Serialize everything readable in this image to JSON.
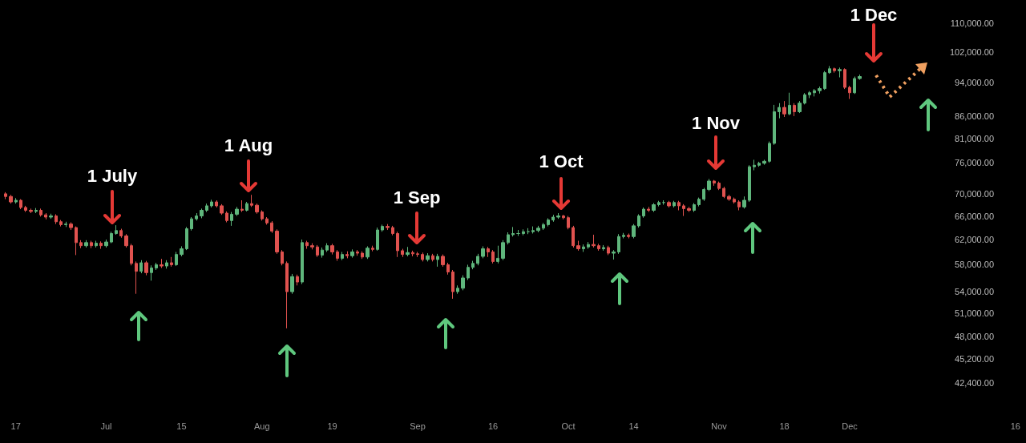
{
  "chart_data": {
    "type": "candlestick",
    "log": true,
    "categories": [
      null,
      null,
      "17",
      null,
      null,
      null,
      null,
      null,
      null,
      null,
      null,
      null,
      null,
      null,
      null,
      null,
      null,
      null,
      null,
      null,
      "Jul",
      null,
      null,
      null,
      null,
      null,
      null,
      null,
      null,
      null,
      null,
      null,
      null,
      null,
      null,
      "15",
      null,
      null,
      null,
      null,
      null,
      null,
      null,
      null,
      null,
      null,
      null,
      null,
      null,
      null,
      null,
      "Aug",
      null,
      null,
      null,
      null,
      null,
      null,
      null,
      null,
      null,
      null,
      null,
      null,
      null,
      "19",
      null,
      null,
      null,
      null,
      null,
      null,
      null,
      null,
      null,
      null,
      null,
      null,
      null,
      null,
      null,
      null,
      "Sep",
      null,
      null,
      null,
      null,
      null,
      null,
      null,
      null,
      null,
      null,
      null,
      null,
      null,
      null,
      "16",
      null,
      null,
      null,
      null,
      null,
      null,
      null,
      null,
      null,
      null,
      null,
      null,
      null,
      null,
      "Oct",
      null,
      null,
      null,
      null,
      null,
      null,
      null,
      null,
      null,
      null,
      null,
      null,
      "14",
      null,
      null,
      null,
      null,
      null,
      null,
      null,
      null,
      null,
      null,
      null,
      null,
      null,
      null,
      null,
      null,
      "Nov",
      null,
      null,
      null,
      null,
      null,
      null,
      null,
      null,
      null,
      null,
      null,
      null,
      "18",
      null,
      null,
      null,
      null,
      null,
      null,
      null,
      null,
      null,
      null,
      null,
      null,
      "Dec",
      null,
      null,
      null,
      null,
      null,
      null,
      null,
      null,
      null,
      null,
      null,
      null,
      null,
      null,
      null,
      null,
      null,
      null,
      null,
      null,
      null,
      null,
      null,
      null,
      null,
      null,
      null,
      null,
      null,
      null,
      null,
      null,
      "16"
    ],
    "ohlc": [
      [
        70000,
        70300,
        69000,
        69500
      ],
      [
        69500,
        69800,
        68200,
        68500
      ],
      [
        68500,
        69200,
        68200,
        68800
      ],
      [
        68800,
        69000,
        67200,
        67500
      ],
      [
        67500,
        67800,
        66700,
        67000
      ],
      [
        67000,
        67300,
        66500,
        66800
      ],
      [
        66800,
        67400,
        66500,
        67000
      ],
      [
        67000,
        67300,
        65900,
        66200
      ],
      [
        66200,
        66500,
        65400,
        65800
      ],
      [
        65800,
        66400,
        65500,
        66000
      ],
      [
        66000,
        66300,
        64600,
        65000
      ],
      [
        65000,
        65300,
        64200,
        64500
      ],
      [
        64500,
        65000,
        64100,
        64600
      ],
      [
        64600,
        64900,
        63600,
        64000
      ],
      [
        64000,
        64200,
        59500,
        61500
      ],
      [
        61500,
        61900,
        60600,
        61000
      ],
      [
        61000,
        61900,
        60700,
        61500
      ],
      [
        61500,
        61800,
        60600,
        61000
      ],
      [
        61000,
        61800,
        60700,
        61400
      ],
      [
        61400,
        61700,
        60500,
        61000
      ],
      [
        61000,
        62000,
        60700,
        61600
      ],
      [
        61600,
        63300,
        61400,
        63000
      ],
      [
        63000,
        64400,
        62800,
        63500
      ],
      [
        63500,
        63800,
        62300,
        62600
      ],
      [
        62600,
        62900,
        60700,
        61000
      ],
      [
        61000,
        61300,
        57900,
        58200
      ],
      [
        58200,
        58500,
        53700,
        57000
      ],
      [
        57000,
        58700,
        56700,
        58300
      ],
      [
        58300,
        58600,
        56400,
        56800
      ],
      [
        56800,
        57900,
        55600,
        57500
      ],
      [
        57500,
        58300,
        57200,
        58000
      ],
      [
        58000,
        58900,
        57500,
        57800
      ],
      [
        57800,
        58700,
        57400,
        58300
      ],
      [
        58300,
        59200,
        57700,
        58000
      ],
      [
        58000,
        60000,
        57800,
        59600
      ],
      [
        59600,
        60900,
        59300,
        60500
      ],
      [
        60500,
        64100,
        60300,
        63800
      ],
      [
        63800,
        65800,
        63500,
        65500
      ],
      [
        65500,
        66500,
        65200,
        66000
      ],
      [
        66000,
        67300,
        65600,
        67000
      ],
      [
        67000,
        68200,
        66700,
        67800
      ],
      [
        67800,
        68900,
        67500,
        68500
      ],
      [
        68500,
        68800,
        67500,
        67800
      ],
      [
        67800,
        68100,
        66200,
        66500
      ],
      [
        66500,
        66800,
        64900,
        65200
      ],
      [
        65200,
        66700,
        64300,
        66300
      ],
      [
        66300,
        67600,
        66000,
        67200
      ],
      [
        67200,
        68800,
        66700,
        67000
      ],
      [
        67000,
        68500,
        66800,
        68200
      ],
      [
        68200,
        69800,
        67600,
        67900
      ],
      [
        67900,
        68200,
        66400,
        66700
      ],
      [
        66700,
        67000,
        65200,
        65500
      ],
      [
        65500,
        65800,
        64500,
        64800
      ],
      [
        64800,
        65100,
        63100,
        63400
      ],
      [
        63400,
        63700,
        59700,
        60000
      ],
      [
        60000,
        60300,
        57900,
        58200
      ],
      [
        58200,
        58500,
        49000,
        54000
      ],
      [
        54000,
        56600,
        53700,
        56200
      ],
      [
        56200,
        56500,
        54900,
        55400
      ],
      [
        55400,
        62000,
        55100,
        61500
      ],
      [
        61500,
        61800,
        60500,
        61000
      ],
      [
        61000,
        61400,
        60400,
        60800
      ],
      [
        60800,
        61100,
        59200,
        59500
      ],
      [
        59500,
        60700,
        59100,
        60300
      ],
      [
        60300,
        61400,
        60000,
        61000
      ],
      [
        61000,
        61300,
        59600,
        60000
      ],
      [
        60000,
        60300,
        58600,
        59000
      ],
      [
        59000,
        60000,
        58700,
        59600
      ],
      [
        59600,
        60100,
        59000,
        59400
      ],
      [
        59400,
        60400,
        59100,
        60000
      ],
      [
        60000,
        60300,
        59400,
        59800
      ],
      [
        59800,
        60100,
        58900,
        59200
      ],
      [
        59200,
        60900,
        58900,
        60600
      ],
      [
        60600,
        61000,
        60100,
        60400
      ],
      [
        60400,
        64000,
        60200,
        63600
      ],
      [
        63600,
        64500,
        63300,
        64200
      ],
      [
        64200,
        64600,
        63600,
        64000
      ],
      [
        64000,
        64300,
        62700,
        63000
      ],
      [
        63000,
        63300,
        59200,
        60200
      ],
      [
        60200,
        60500,
        59200,
        59600
      ],
      [
        59600,
        60800,
        59300,
        59900
      ],
      [
        59900,
        60200,
        59300,
        59700
      ],
      [
        59700,
        60000,
        59200,
        59600
      ],
      [
        59600,
        59900,
        58500,
        58800
      ],
      [
        58800,
        59800,
        58500,
        59400
      ],
      [
        59400,
        59700,
        58500,
        58800
      ],
      [
        58800,
        59700,
        57700,
        59300
      ],
      [
        59300,
        59600,
        57700,
        58000
      ],
      [
        58000,
        58300,
        56500,
        56900
      ],
      [
        56900,
        57200,
        53000,
        54000
      ],
      [
        54000,
        54900,
        53700,
        54500
      ],
      [
        54500,
        56400,
        54200,
        56000
      ],
      [
        56000,
        58000,
        55700,
        57600
      ],
      [
        57600,
        58600,
        57300,
        58200
      ],
      [
        58200,
        59700,
        57900,
        59300
      ],
      [
        59300,
        60900,
        59000,
        60500
      ],
      [
        60500,
        60800,
        59200,
        60000
      ],
      [
        60000,
        60300,
        58200,
        58500
      ],
      [
        58500,
        61000,
        58200,
        59000
      ],
      [
        59000,
        61900,
        58700,
        61500
      ],
      [
        61500,
        63200,
        61200,
        62800
      ],
      [
        62800,
        64100,
        62500,
        63000
      ],
      [
        63000,
        63600,
        62600,
        63000
      ],
      [
        63000,
        63700,
        62700,
        63300
      ],
      [
        63300,
        63900,
        62900,
        63300
      ],
      [
        63300,
        64200,
        63000,
        63500
      ],
      [
        63500,
        64300,
        63200,
        63900
      ],
      [
        63900,
        64800,
        63600,
        64500
      ],
      [
        64500,
        65600,
        64200,
        65300
      ],
      [
        65300,
        66200,
        65000,
        65800
      ],
      [
        65800,
        66500,
        65500,
        66000
      ],
      [
        66000,
        66200,
        65400,
        65700
      ],
      [
        65700,
        66000,
        63700,
        64000
      ],
      [
        64000,
        64300,
        60700,
        61000
      ],
      [
        61000,
        61800,
        60200,
        60500
      ],
      [
        60500,
        61200,
        60000,
        60800
      ],
      [
        60800,
        61600,
        60500,
        61200
      ],
      [
        61200,
        62800,
        60700,
        61000
      ],
      [
        61000,
        61300,
        60200,
        60500
      ],
      [
        60500,
        61100,
        60200,
        60700
      ],
      [
        60700,
        61000,
        59500,
        59800
      ],
      [
        59800,
        60300,
        58800,
        60000
      ],
      [
        60000,
        62900,
        59700,
        62500
      ],
      [
        62500,
        63100,
        62200,
        62700
      ],
      [
        62700,
        63000,
        62200,
        62500
      ],
      [
        62500,
        64600,
        62200,
        64300
      ],
      [
        64300,
        66300,
        64000,
        66000
      ],
      [
        66000,
        67500,
        65700,
        67200
      ],
      [
        67200,
        67600,
        66700,
        67000
      ],
      [
        67000,
        68300,
        66700,
        68000
      ],
      [
        68000,
        68700,
        67700,
        68400
      ],
      [
        68400,
        68800,
        68000,
        68400
      ],
      [
        68400,
        68700,
        67500,
        67800
      ],
      [
        67800,
        68700,
        67500,
        68400
      ],
      [
        68400,
        68700,
        67000,
        67800
      ],
      [
        67800,
        68100,
        66000,
        67300
      ],
      [
        67300,
        67600,
        66700,
        67000
      ],
      [
        67000,
        68300,
        66700,
        68000
      ],
      [
        68000,
        69300,
        67700,
        69000
      ],
      [
        69000,
        71100,
        68700,
        70800
      ],
      [
        70800,
        72800,
        70500,
        72400
      ],
      [
        72400,
        72600,
        71500,
        72000
      ],
      [
        72000,
        72300,
        70700,
        71000
      ],
      [
        71000,
        71300,
        69200,
        69500
      ],
      [
        69500,
        69800,
        68700,
        69000
      ],
      [
        69000,
        69300,
        68200,
        68500
      ],
      [
        68500,
        68800,
        67000,
        67600
      ],
      [
        67600,
        69500,
        67300,
        68800
      ],
      [
        68800,
        75500,
        68500,
        75200
      ],
      [
        75200,
        76600,
        74500,
        75500
      ],
      [
        75500,
        76200,
        75200,
        75900
      ],
      [
        75900,
        76600,
        75600,
        76300
      ],
      [
        76300,
        80400,
        76000,
        80000
      ],
      [
        80000,
        88600,
        79700,
        87000
      ],
      [
        87000,
        89000,
        85500,
        88000
      ],
      [
        88000,
        89500,
        85800,
        86500
      ],
      [
        86500,
        91500,
        86200,
        88500
      ],
      [
        88500,
        89000,
        86000,
        87000
      ],
      [
        87000,
        89500,
        86700,
        89000
      ],
      [
        89000,
        91400,
        88700,
        91000
      ],
      [
        91000,
        91900,
        90200,
        91500
      ],
      [
        91500,
        92400,
        90600,
        92000
      ],
      [
        92000,
        93000,
        91300,
        92500
      ],
      [
        92500,
        96900,
        92200,
        96500
      ],
      [
        96500,
        98200,
        96200,
        97500
      ],
      [
        97500,
        97800,
        96500,
        97000
      ],
      [
        97000,
        97800,
        95300,
        97300
      ],
      [
        97300,
        97600,
        92400,
        92800
      ],
      [
        92800,
        93200,
        90000,
        91500
      ],
      [
        91500,
        95500,
        91200,
        95000
      ],
      [
        95000,
        96000,
        94700,
        95500
      ],
      null,
      null,
      null,
      null,
      null,
      null,
      null,
      null,
      null,
      null,
      null,
      null,
      null,
      null,
      null,
      null,
      null,
      null,
      null,
      null,
      null,
      null,
      null,
      null,
      null,
      null,
      null,
      null,
      null,
      null,
      null
    ],
    "ylim": [
      42400,
      110000
    ],
    "yticks": [
      {
        "value": 42400,
        "label": "42,400.00"
      },
      {
        "value": 45200,
        "label": "45,200.00"
      },
      {
        "value": 48000,
        "label": "48,000.00"
      },
      {
        "value": 51000,
        "label": "51,000.00"
      },
      {
        "value": 54000,
        "label": "54,000.00"
      },
      {
        "value": 58000,
        "label": "58,000.00"
      },
      {
        "value": 62000,
        "label": "62,000.00"
      },
      {
        "value": 66000,
        "label": "66,000.00"
      },
      {
        "value": 70000,
        "label": "70,000.00"
      },
      {
        "value": 76000,
        "label": "76,000.00"
      },
      {
        "value": 81000,
        "label": "81,000.00"
      },
      {
        "value": 86000,
        "label": "86,000.00"
      },
      {
        "value": 94000,
        "label": "94,000.00"
      },
      {
        "value": 102000,
        "label": "102,000.00"
      },
      {
        "value": 110000,
        "label": "110,000.00"
      }
    ],
    "annotations": [
      "1 July",
      "1 Aug",
      "1 Sep",
      "1 Oct",
      "1 Nov",
      "1 Dec"
    ]
  }
}
